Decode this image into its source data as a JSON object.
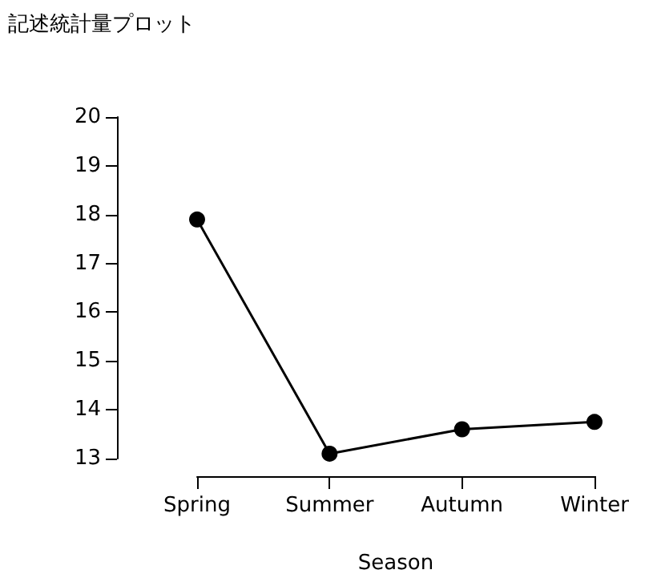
{
  "chart_data": {
    "type": "line",
    "title": "記述統計量プロット",
    "xlabel": "Season",
    "categories": [
      "Spring",
      "Summer",
      "Autumn",
      "Winter"
    ],
    "series": [
      {
        "color": "#000000",
        "values": [
          17.9,
          13.1,
          13.6,
          13.75
        ]
      }
    ],
    "ylim": [
      13,
      20
    ],
    "yticks": [
      13,
      14,
      15,
      16,
      17,
      18,
      19,
      20
    ],
    "grid": false,
    "marker": "circle",
    "line_style": "solid"
  }
}
